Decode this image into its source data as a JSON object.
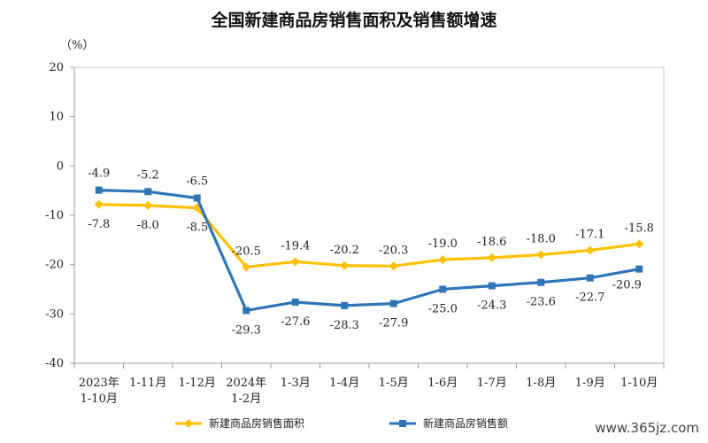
{
  "title": "全国新建商品房销售面积及销售额增速",
  "unit": "（%）",
  "watermark": "www.365jz.com",
  "chart_data": {
    "type": "line",
    "categories": [
      "2023年\n1-10月",
      "1-11月",
      "1-12月",
      "2024年\n1-2月",
      "1-3月",
      "1-4月",
      "1-5月",
      "1-6月",
      "1-7月",
      "1-8月",
      "1-9月",
      "1-10月"
    ],
    "ylim": [
      -40,
      20
    ],
    "yticks": [
      20,
      10,
      0,
      -10,
      -20,
      -30,
      -40
    ],
    "series": [
      {
        "name": "新建商品房销售面积",
        "color": "#FFC000",
        "values": [
          -7.8,
          -8.0,
          -8.5,
          -20.5,
          -19.4,
          -20.2,
          -20.3,
          -19.0,
          -18.6,
          -18.0,
          -17.1,
          -15.8
        ],
        "labels": [
          "-7.8",
          "-8.0",
          "-8.5",
          "-20.5",
          "-19.4",
          "-20.2",
          "-20.3",
          "-19.0",
          "-18.6",
          "-18.0",
          "-17.1",
          "-15.8"
        ]
      },
      {
        "name": "新建商品房销售额",
        "color": "#2E75B6",
        "values": [
          -4.9,
          -5.2,
          -6.5,
          -29.3,
          -27.6,
          -28.3,
          -27.9,
          -25.0,
          -24.3,
          -23.6,
          -22.7,
          -20.9
        ],
        "labels": [
          "-4.9",
          "-5.2",
          "-6.5",
          "-29.3",
          "-27.6",
          "-28.3",
          "-27.9",
          "-25.0",
          "-24.3",
          "-23.6",
          "-22.7",
          "-20.9"
        ]
      }
    ]
  }
}
